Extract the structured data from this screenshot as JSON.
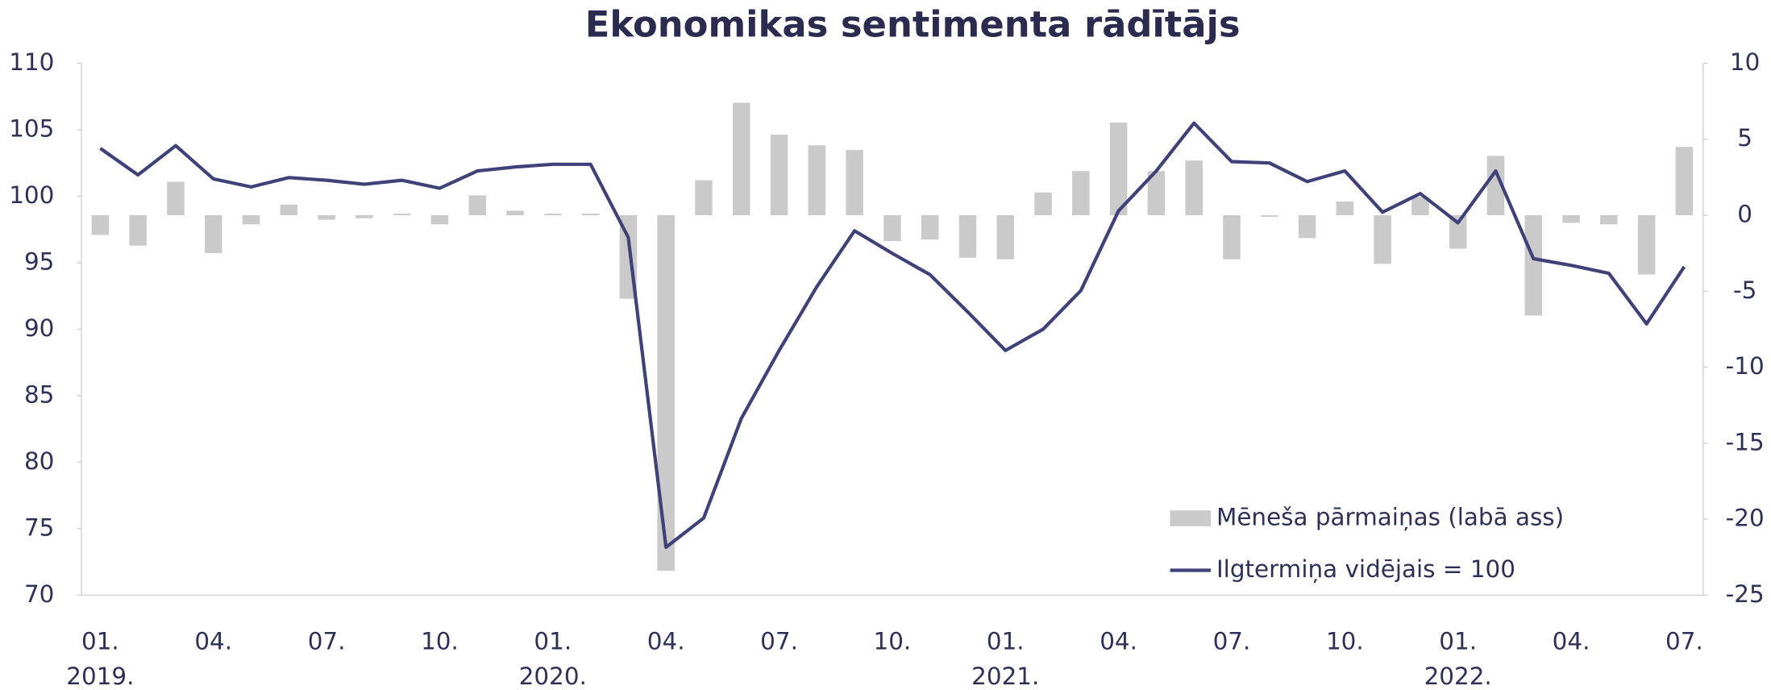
{
  "chart_data": {
    "type": "bar_line",
    "title": "Ekonomikas sentimenta rādītājs",
    "categories": [
      "01.",
      null,
      null,
      "04.",
      null,
      null,
      "07.",
      null,
      null,
      "10.",
      null,
      null,
      "01.",
      null,
      null,
      "04.",
      null,
      null,
      "07.",
      null,
      null,
      "10.",
      null,
      null,
      "01.",
      null,
      null,
      "04.",
      null,
      null,
      "07.",
      null,
      null,
      "10.",
      null,
      null,
      "01.",
      null,
      null,
      "04.",
      null,
      null,
      "07."
    ],
    "category_years": [
      "2019.",
      null,
      null,
      null,
      null,
      null,
      null,
      null,
      null,
      null,
      null,
      null,
      "2020.",
      null,
      null,
      null,
      null,
      null,
      null,
      null,
      null,
      null,
      null,
      null,
      "2021.",
      null,
      null,
      null,
      null,
      null,
      null,
      null,
      null,
      null,
      null,
      null,
      "2022.",
      null,
      null,
      null,
      null,
      null,
      null
    ],
    "series": [
      {
        "name": "Mēneša pārmaiņas (labā ass)",
        "type": "bar",
        "axis": "y2",
        "color": "#cacaca",
        "values": [
          -1.3,
          -2.0,
          2.2,
          -2.5,
          -0.6,
          0.7,
          -0.3,
          -0.2,
          0.1,
          -0.6,
          1.3,
          0.3,
          0.1,
          0.1,
          -5.5,
          -23.4,
          2.3,
          7.4,
          5.3,
          4.6,
          4.3,
          -1.7,
          -1.6,
          -2.8,
          -2.9,
          1.5,
          2.9,
          6.1,
          2.9,
          3.6,
          -2.9,
          -0.1,
          -1.5,
          0.9,
          -3.2,
          1.2,
          -2.2,
          3.9,
          -6.6,
          -0.5,
          -0.6,
          -3.9,
          4.5
        ]
      },
      {
        "name": "Ilgtermiņa vidējais = 100",
        "type": "line",
        "axis": "y",
        "color": "#3f4278",
        "values": [
          103.6,
          101.6,
          103.8,
          101.3,
          100.7,
          101.4,
          101.2,
          100.9,
          101.2,
          100.6,
          101.9,
          102.2,
          102.4,
          102.4,
          96.9,
          73.6,
          75.8,
          83.3,
          88.4,
          93.2,
          97.4,
          95.7,
          94.1,
          91.3,
          88.4,
          90.0,
          92.9,
          98.9,
          101.9,
          105.5,
          102.6,
          102.5,
          101.1,
          101.9,
          98.8,
          100.2,
          98.0,
          101.9,
          95.3,
          94.8,
          94.2,
          90.4,
          94.7
        ]
      }
    ],
    "ylim": [
      70,
      110
    ],
    "yticks": [
      70,
      75,
      80,
      85,
      90,
      95,
      100,
      105,
      110
    ],
    "y2lim": [
      -25,
      10
    ],
    "y2ticks": [
      -25,
      -20,
      -15,
      -10,
      -5,
      0,
      5,
      10
    ],
    "legend": "lower right"
  }
}
